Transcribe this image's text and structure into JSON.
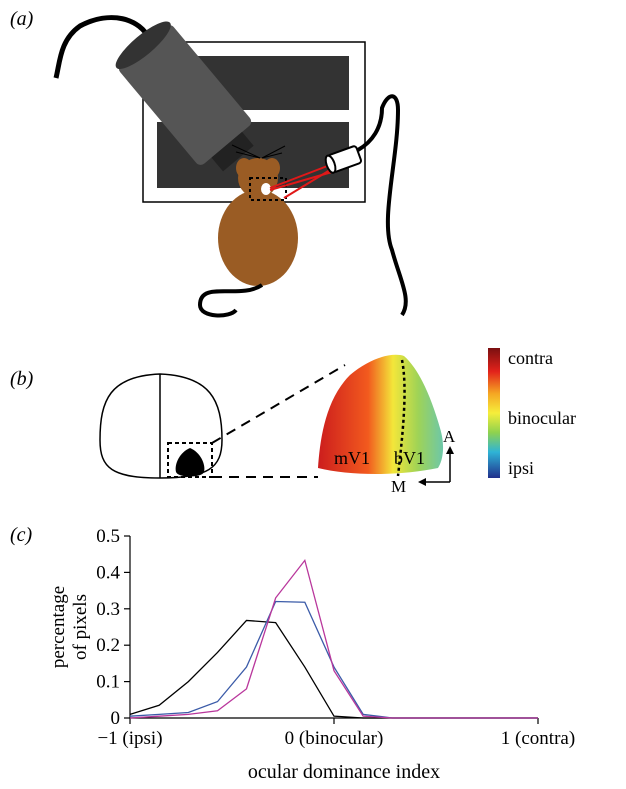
{
  "panels": {
    "a": {
      "label": "(a)"
    },
    "b": {
      "label": "(b)",
      "region_labels": {
        "mono": "mV1",
        "bino": "bV1"
      },
      "axes_labels": {
        "anterior": "A",
        "medial": "M"
      },
      "colorbar": {
        "top": "contra",
        "middle": "binocular",
        "bottom": "ipsi"
      }
    },
    "c": {
      "label": "(c)"
    }
  },
  "colors": {
    "mouse": "#9a5c24",
    "laser": "#e01818",
    "screen_dark": "#333333",
    "objective": "#555555"
  },
  "chart_data": {
    "type": "line",
    "xlabel": "ocular dominance index",
    "ylabel": "percentage of pixels",
    "ylabel_lines": [
      "percentage",
      "of pixels"
    ],
    "x_ticks": [
      {
        "value": -1,
        "label": "−1 (ipsi)"
      },
      {
        "value": 0,
        "label": "0 (binocular)"
      },
      {
        "value": 1,
        "label": "1 (contra)"
      }
    ],
    "y_ticks": [
      0,
      0.1,
      0.2,
      0.3,
      0.4,
      0.5
    ],
    "ylim": [
      0,
      0.5
    ],
    "xlim": [
      -1,
      1
    ],
    "x": [
      -1,
      -0.857,
      -0.714,
      -0.571,
      -0.429,
      -0.286,
      -0.143,
      0,
      0.143,
      0.286,
      0.429,
      0.571,
      0.714,
      0.857,
      1
    ],
    "series": [
      {
        "color": "#000000",
        "values": [
          0.01,
          0.035,
          0.1,
          0.18,
          0.268,
          0.262,
          0.14,
          0.005,
          0,
          0,
          0,
          0,
          0,
          0,
          0
        ]
      },
      {
        "color": "#3b5ba8",
        "values": [
          0.005,
          0.01,
          0.015,
          0.045,
          0.14,
          0.32,
          0.318,
          0.14,
          0.01,
          0,
          0,
          0,
          0,
          0,
          0
        ]
      },
      {
        "color": "#b9379c",
        "values": [
          0,
          0.005,
          0.01,
          0.02,
          0.08,
          0.33,
          0.433,
          0.13,
          0.005,
          0,
          0,
          0,
          0,
          0,
          0
        ]
      }
    ]
  }
}
